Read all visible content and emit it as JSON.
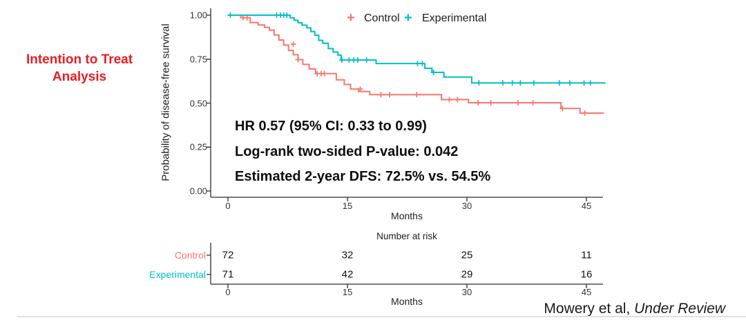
{
  "slide": {
    "title_line1": "Intention to Treat",
    "title_line2": "Analysis",
    "title_color": "#EC1C24",
    "citation_regular": "Mowery et al, ",
    "citation_italic": "Under Review"
  },
  "chart_data": {
    "type": "line",
    "subtype": "kaplan-meier-step-curve",
    "title": "",
    "xlabel": "Months",
    "ylabel": "Probability of disease-free survival",
    "xlim": [
      0,
      48
    ],
    "ylim": [
      0,
      1
    ],
    "xticks": [
      0,
      15,
      30,
      45
    ],
    "yticks": [
      "1.00",
      "0.75",
      "0.50",
      "0.25",
      "0.00"
    ],
    "ytick_values": [
      1.0,
      0.75,
      0.5,
      0.25,
      0.0
    ],
    "grid": false,
    "legend": {
      "position": "top",
      "marker": "+",
      "entries": [
        {
          "label": "Control",
          "color": "#F8766D"
        },
        {
          "label": "Experimental",
          "color": "#00BFC4"
        }
      ]
    },
    "annotations": [
      "HR 0.57 (95% CI: 0.33 to 0.99)",
      "Log-rank two-sided P-value: 0.042",
      "Estimated 2-year DFS: 72.5% vs. 54.5%"
    ],
    "series": [
      {
        "name": "Control",
        "color": "#F8766D",
        "steps": [
          [
            0,
            1.0
          ],
          [
            1.6,
            0.986
          ],
          [
            2.8,
            0.958
          ],
          [
            3.8,
            0.944
          ],
          [
            4.6,
            0.93
          ],
          [
            5.2,
            0.915
          ],
          [
            5.8,
            0.887
          ],
          [
            6.4,
            0.859
          ],
          [
            7.0,
            0.83
          ],
          [
            7.6,
            0.8
          ],
          [
            8.2,
            0.775
          ],
          [
            8.8,
            0.747
          ],
          [
            9.4,
            0.72
          ],
          [
            10.2,
            0.694
          ],
          [
            11.0,
            0.668
          ],
          [
            13.6,
            0.632
          ],
          [
            14.6,
            0.606
          ],
          [
            15.4,
            0.58
          ],
          [
            16.4,
            0.566
          ],
          [
            17.8,
            0.548
          ],
          [
            26.8,
            0.52
          ],
          [
            30.2,
            0.502
          ],
          [
            41.8,
            0.47
          ],
          [
            44.2,
            0.443
          ],
          [
            47.2,
            0.443
          ]
        ],
        "censor_marks": [
          [
            1.9,
            0.986
          ],
          [
            2.4,
            0.986
          ],
          [
            8.2,
            0.835
          ],
          [
            8.8,
            0.747
          ],
          [
            11.2,
            0.668
          ],
          [
            11.7,
            0.668
          ],
          [
            12.1,
            0.668
          ],
          [
            16.6,
            0.58
          ],
          [
            19.2,
            0.548
          ],
          [
            20.3,
            0.548
          ],
          [
            23.7,
            0.548
          ],
          [
            27.8,
            0.52
          ],
          [
            28.8,
            0.52
          ],
          [
            31.4,
            0.502
          ],
          [
            33.0,
            0.502
          ],
          [
            36.4,
            0.502
          ],
          [
            38.3,
            0.502
          ],
          [
            42.0,
            0.47
          ],
          [
            44.8,
            0.443
          ]
        ]
      },
      {
        "name": "Experimental",
        "color": "#00BFC4",
        "steps": [
          [
            0,
            1.0
          ],
          [
            7.8,
            0.985
          ],
          [
            8.3,
            0.971
          ],
          [
            8.8,
            0.957
          ],
          [
            9.3,
            0.943
          ],
          [
            9.9,
            0.928
          ],
          [
            10.4,
            0.907
          ],
          [
            10.9,
            0.886
          ],
          [
            11.4,
            0.857
          ],
          [
            11.9,
            0.84
          ],
          [
            12.6,
            0.81
          ],
          [
            13.2,
            0.79
          ],
          [
            13.8,
            0.773
          ],
          [
            14.2,
            0.745
          ],
          [
            18.6,
            0.725
          ],
          [
            24.7,
            0.698
          ],
          [
            25.6,
            0.675
          ],
          [
            27.1,
            0.648
          ],
          [
            30.6,
            0.615
          ],
          [
            47.4,
            0.615
          ]
        ],
        "censor_marks": [
          [
            0.3,
            1.0
          ],
          [
            6.1,
            1.0
          ],
          [
            6.6,
            1.0
          ],
          [
            7.0,
            1.0
          ],
          [
            7.4,
            1.0
          ],
          [
            14.3,
            0.745
          ],
          [
            15.2,
            0.745
          ],
          [
            15.8,
            0.745
          ],
          [
            16.3,
            0.745
          ],
          [
            17.4,
            0.745
          ],
          [
            23.8,
            0.725
          ],
          [
            24.4,
            0.725
          ],
          [
            25.8,
            0.675
          ],
          [
            31.5,
            0.615
          ],
          [
            34.5,
            0.615
          ],
          [
            35.7,
            0.615
          ],
          [
            36.7,
            0.615
          ],
          [
            38.4,
            0.615
          ],
          [
            41.6,
            0.615
          ],
          [
            42.9,
            0.615
          ],
          [
            44.7,
            0.615
          ],
          [
            45.5,
            0.615
          ]
        ]
      }
    ]
  },
  "risk_table": {
    "title": "Number at risk",
    "xlabel": "Months",
    "xticks": [
      0,
      15,
      30,
      45
    ],
    "rows": [
      {
        "label": "Control",
        "color": "#F8766D",
        "values": [
          72,
          32,
          25,
          11
        ]
      },
      {
        "label": "Experimental",
        "color": "#00BFC4",
        "values": [
          71,
          42,
          29,
          16
        ]
      }
    ]
  }
}
